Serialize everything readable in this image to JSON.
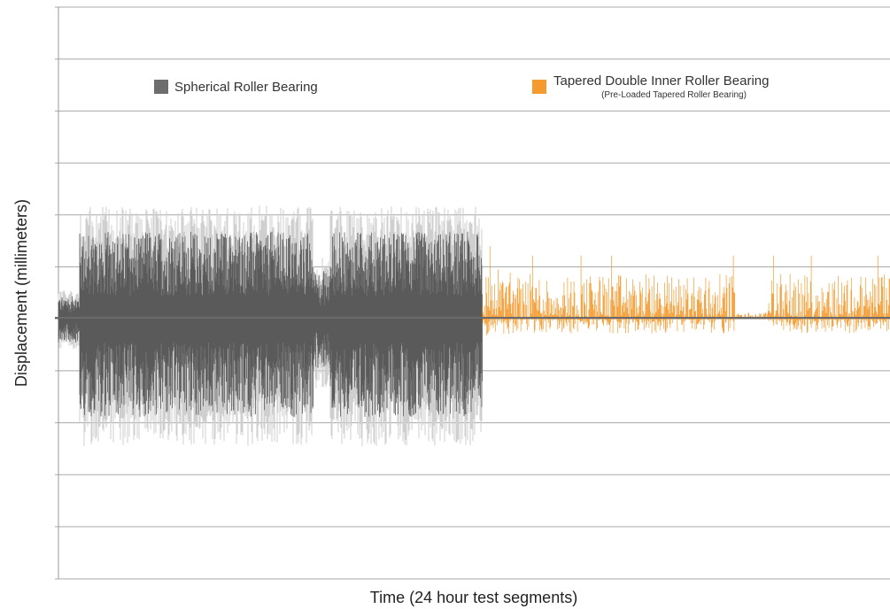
{
  "chart_data": {
    "type": "line",
    "title": "",
    "xlabel": "Time (24 hour test segments)",
    "ylabel": "Displacement (millimeters)",
    "grid": true,
    "gridline_count": 11,
    "legend_placement": "top",
    "series": [
      {
        "name": "Spherical Roller Bearing",
        "color": "#5a5a5a",
        "envelope_color": "#cfcfcf",
        "time_range": [
          0.0,
          0.51
        ],
        "amplitude_up_fraction": 0.33,
        "amplitude_down_fraction": 0.38
      },
      {
        "name": "Tapered Double Inner Roller Bearing",
        "subtitle": "(Pre-Loaded Tapered Roller Bearing)",
        "color": "#f59a2e",
        "time_range": [
          0.51,
          1.0
        ],
        "amplitude_up_fraction": 0.14,
        "amplitude_down_fraction": 0.06
      }
    ],
    "legend": [
      {
        "label": "Spherical Roller Bearing",
        "color": "#6d6d6d"
      },
      {
        "label": "Tapered Double Inner Roller Bearing",
        "sublabel": "(Pre-Loaded Tapered Roller Bearing)",
        "color": "#f59a2e"
      }
    ]
  }
}
